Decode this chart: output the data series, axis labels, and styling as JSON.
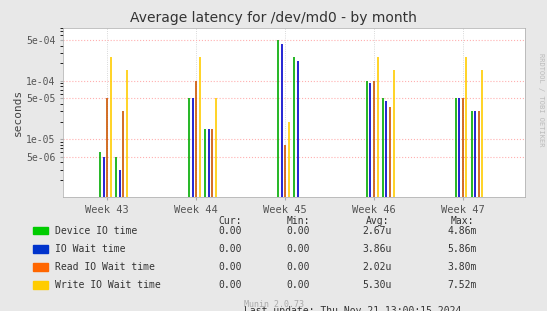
{
  "title": "Average latency for /dev/md0 - by month",
  "ylabel": "seconds",
  "watermark": "RRDTOOL / TOBI OETIKER",
  "munin_version": "Munin 2.0.73",
  "last_update": "Last update: Thu Nov 21 13:00:15 2024",
  "background_color": "#e8e8e8",
  "plot_bg_color": "#ffffff",
  "grid_color": "#ffb0b0",
  "ylim_min": 1e-06,
  "ylim_max": 0.0008,
  "week_labels": [
    "Week 43",
    "Week 44",
    "Week 45",
    "Week 46",
    "Week 47"
  ],
  "week_positions": [
    43,
    44,
    45,
    46,
    47
  ],
  "series_names": [
    "Device IO time",
    "IO Wait time",
    "Read IO Wait time",
    "Write IO Wait time"
  ],
  "series_colors": [
    "#00aa00",
    "#0000cc",
    "#cc5500",
    "#ffcc00"
  ],
  "legend_colors": [
    "#00cc00",
    "#0033cc",
    "#ff6600",
    "#ffcc00"
  ],
  "spike_heights": {
    "Device IO time": [
      6e-06,
      5e-05,
      0.0005,
      0.0001,
      5e-05
    ],
    "IO Wait time": [
      5e-06,
      5e-05,
      0.00043,
      9e-05,
      5e-05
    ],
    "Read IO Wait time": [
      5e-05,
      0.0001,
      8e-06,
      0.0001,
      5e-05
    ],
    "Write IO Wait time": [
      0.00025,
      0.00025,
      2e-05,
      0.00025,
      0.00025
    ]
  },
  "spike2_heights": {
    "Device IO time": [
      5e-06,
      1.5e-05,
      0.00025,
      5e-05,
      3e-05
    ],
    "IO Wait time": [
      3e-06,
      1.5e-05,
      0.00022,
      4.5e-05,
      3e-05
    ],
    "Read IO Wait time": [
      3e-05,
      1.5e-05,
      9e-09,
      3.5e-05,
      3e-05
    ],
    "Write IO Wait time": [
      0.00015,
      5e-05,
      9e-09,
      0.00015,
      0.00015
    ]
  },
  "y_ticks": [
    5e-06,
    1e-05,
    5e-05,
    0.0001,
    0.0005
  ],
  "y_tick_labels": [
    "5e-06",
    "1e-05",
    "5e-05",
    "1e-04",
    "5e-04"
  ],
  "legend_entries": [
    {
      "label": "Device IO time",
      "cur": "0.00",
      "min": "0.00",
      "avg": "2.67u",
      "max": "4.86m"
    },
    {
      "label": "IO Wait time",
      "cur": "0.00",
      "min": "0.00",
      "avg": "3.86u",
      "max": "5.86m"
    },
    {
      "label": "Read IO Wait time",
      "cur": "0.00",
      "min": "0.00",
      "avg": "2.02u",
      "max": "3.80m"
    },
    {
      "label": "Write IO Wait time",
      "cur": "0.00",
      "min": "0.00",
      "avg": "5.30u",
      "max": "7.52m"
    }
  ]
}
